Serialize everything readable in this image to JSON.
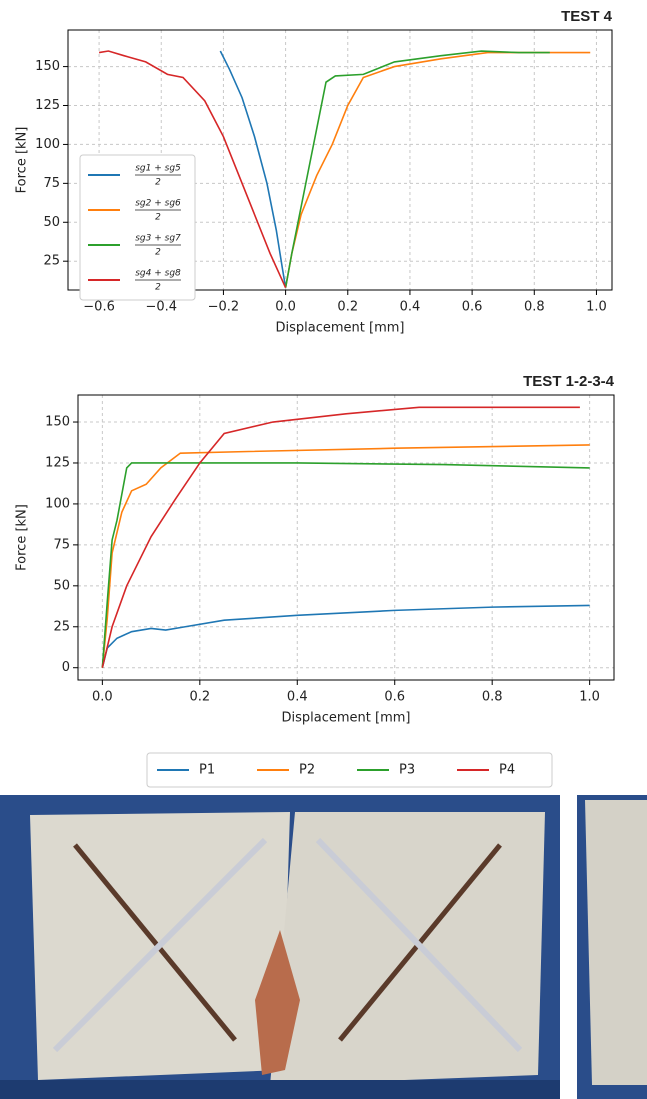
{
  "chart_data": [
    {
      "type": "line",
      "title": "TEST 4",
      "x_label": "Displacement [mm]",
      "y_label": "Force [kN]",
      "xlim": [
        -0.7,
        1.05
      ],
      "ylim": [
        6.5,
        173.5
      ],
      "xticks": [
        {
          "value": -0.6,
          "label": "−0.6"
        },
        {
          "value": -0.4,
          "label": "−0.4"
        },
        {
          "value": -0.2,
          "label": "−0.2"
        },
        {
          "value": 0,
          "label": "0.0"
        },
        0.2,
        0.4,
        0.6,
        0.8,
        {
          "value": 1,
          "label": "1.0"
        }
      ],
      "yticks": [
        25,
        50,
        75,
        100,
        125,
        150
      ],
      "grid": true,
      "legend": "left",
      "legend_denominator": "2",
      "series": [
        {
          "name": "sg1 + sg5",
          "color": "#1f77b4",
          "x": [
            0,
            -0.01,
            -0.03,
            -0.06,
            -0.1,
            -0.14,
            -0.18,
            -0.21
          ],
          "values": [
            8,
            20,
            45,
            75,
            105,
            130,
            148,
            160
          ]
        },
        {
          "name": "sg2 + sg6",
          "color": "#ff7f0e",
          "x": [
            0,
            0.02,
            0.05,
            0.1,
            0.15,
            0.2,
            0.25,
            0.35,
            0.5,
            0.65,
            0.8,
            0.98
          ],
          "values": [
            8,
            30,
            55,
            80,
            100,
            125,
            143,
            150,
            155,
            159,
            159,
            159
          ]
        },
        {
          "name": "sg3 + sg7",
          "color": "#2ca02c",
          "x": [
            0,
            0.02,
            0.06,
            0.1,
            0.13,
            0.16,
            0.25,
            0.35,
            0.5,
            0.63,
            0.75,
            0.85
          ],
          "values": [
            8,
            30,
            70,
            110,
            140,
            144,
            145,
            153,
            157,
            160,
            159,
            159
          ]
        },
        {
          "name": "sg4 + sg8",
          "color": "#d62728",
          "x": [
            0,
            -0.05,
            -0.1,
            -0.15,
            -0.2,
            -0.26,
            -0.33,
            -0.38,
            -0.45,
            -0.52,
            -0.57,
            -0.6
          ],
          "values": [
            8,
            30,
            55,
            80,
            105,
            128,
            143,
            145,
            153,
            157,
            160,
            159
          ]
        }
      ]
    },
    {
      "type": "line",
      "title": "TEST 1-2-3-4",
      "x_label": "Displacement [mm]",
      "y_label": "Force [kN]",
      "xlim": [
        -0.05,
        1.05
      ],
      "ylim": [
        -7.5,
        166.5
      ],
      "xticks": [
        {
          "value": 0,
          "label": "0.0"
        },
        0.2,
        0.4,
        0.6,
        0.8,
        {
          "value": 1,
          "label": "1.0"
        }
      ],
      "yticks": [
        0,
        25,
        50,
        75,
        100,
        125,
        150
      ],
      "grid": true,
      "legend": "below",
      "series": [
        {
          "name": "P1",
          "color": "#1f77b4",
          "x": [
            0,
            0.01,
            0.03,
            0.06,
            0.1,
            0.13,
            0.17,
            0.25,
            0.4,
            0.6,
            0.8,
            1.0
          ],
          "values": [
            0,
            12,
            18,
            22,
            24,
            23,
            25,
            29,
            32,
            35,
            37,
            38
          ]
        },
        {
          "name": "P2",
          "color": "#ff7f0e",
          "x": [
            0,
            0.01,
            0.02,
            0.04,
            0.06,
            0.09,
            0.12,
            0.16,
            0.3,
            0.6,
            1.0
          ],
          "values": [
            0,
            30,
            70,
            95,
            108,
            112,
            122,
            131,
            132,
            134,
            136
          ]
        },
        {
          "name": "P3",
          "color": "#2ca02c",
          "x": [
            0,
            0.01,
            0.02,
            0.03,
            0.05,
            0.06,
            0.2,
            0.4,
            0.7,
            1.0
          ],
          "values": [
            0,
            40,
            78,
            90,
            122,
            125,
            125,
            125,
            124,
            122
          ]
        },
        {
          "name": "P4",
          "color": "#d62728",
          "x": [
            0,
            0.02,
            0.05,
            0.1,
            0.15,
            0.2,
            0.25,
            0.35,
            0.5,
            0.65,
            0.8,
            0.98
          ],
          "values": [
            0,
            25,
            50,
            80,
            103,
            125,
            143,
            150,
            155,
            159,
            159,
            159
          ]
        }
      ]
    }
  ]
}
